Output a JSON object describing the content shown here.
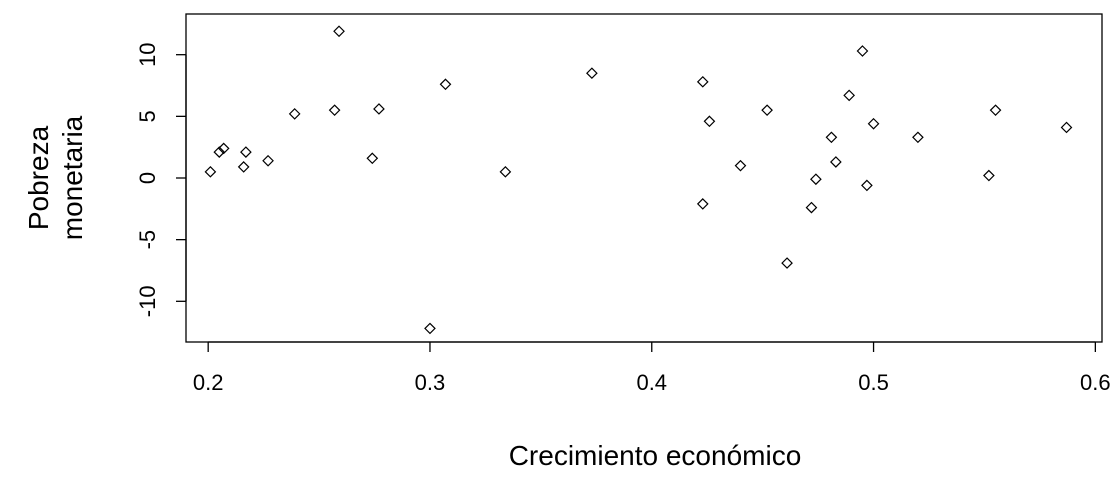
{
  "chart_data": {
    "type": "scatter",
    "xlabel": "Crecimiento económico",
    "ylabel_lines": [
      "Pobreza",
      "monetaria"
    ],
    "xlim": [
      0.19,
      0.603
    ],
    "ylim": [
      -13.3,
      13.3
    ],
    "x_ticks": [
      0.2,
      0.3,
      0.4,
      0.5,
      0.6
    ],
    "x_tick_labels": [
      "0.2",
      "0.3",
      "0.4",
      "0.5",
      "0.6"
    ],
    "y_ticks": [
      -10,
      -5,
      0,
      5,
      10
    ],
    "y_tick_labels": [
      "-10",
      "-5",
      "0",
      "5",
      "10"
    ],
    "grid": false,
    "points": [
      {
        "x": 0.201,
        "y": 0.5
      },
      {
        "x": 0.205,
        "y": 2.1
      },
      {
        "x": 0.207,
        "y": 2.4
      },
      {
        "x": 0.216,
        "y": 0.9
      },
      {
        "x": 0.217,
        "y": 2.1
      },
      {
        "x": 0.227,
        "y": 1.4
      },
      {
        "x": 0.239,
        "y": 5.2
      },
      {
        "x": 0.257,
        "y": 5.5
      },
      {
        "x": 0.259,
        "y": 11.9
      },
      {
        "x": 0.274,
        "y": 1.6
      },
      {
        "x": 0.277,
        "y": 5.6
      },
      {
        "x": 0.3,
        "y": -12.2
      },
      {
        "x": 0.307,
        "y": 7.6
      },
      {
        "x": 0.334,
        "y": 0.5
      },
      {
        "x": 0.373,
        "y": 8.5
      },
      {
        "x": 0.423,
        "y": 7.8
      },
      {
        "x": 0.423,
        "y": -2.1
      },
      {
        "x": 0.426,
        "y": 4.6
      },
      {
        "x": 0.44,
        "y": 1.0
      },
      {
        "x": 0.452,
        "y": 5.5
      },
      {
        "x": 0.461,
        "y": -6.9
      },
      {
        "x": 0.472,
        "y": -2.4
      },
      {
        "x": 0.474,
        "y": -0.1
      },
      {
        "x": 0.481,
        "y": 3.3
      },
      {
        "x": 0.483,
        "y": 1.3
      },
      {
        "x": 0.489,
        "y": 6.7
      },
      {
        "x": 0.495,
        "y": 10.3
      },
      {
        "x": 0.497,
        "y": -0.6
      },
      {
        "x": 0.5,
        "y": 4.4
      },
      {
        "x": 0.52,
        "y": 3.3
      },
      {
        "x": 0.552,
        "y": 0.2
      },
      {
        "x": 0.555,
        "y": 5.5
      },
      {
        "x": 0.587,
        "y": 4.1
      }
    ]
  }
}
